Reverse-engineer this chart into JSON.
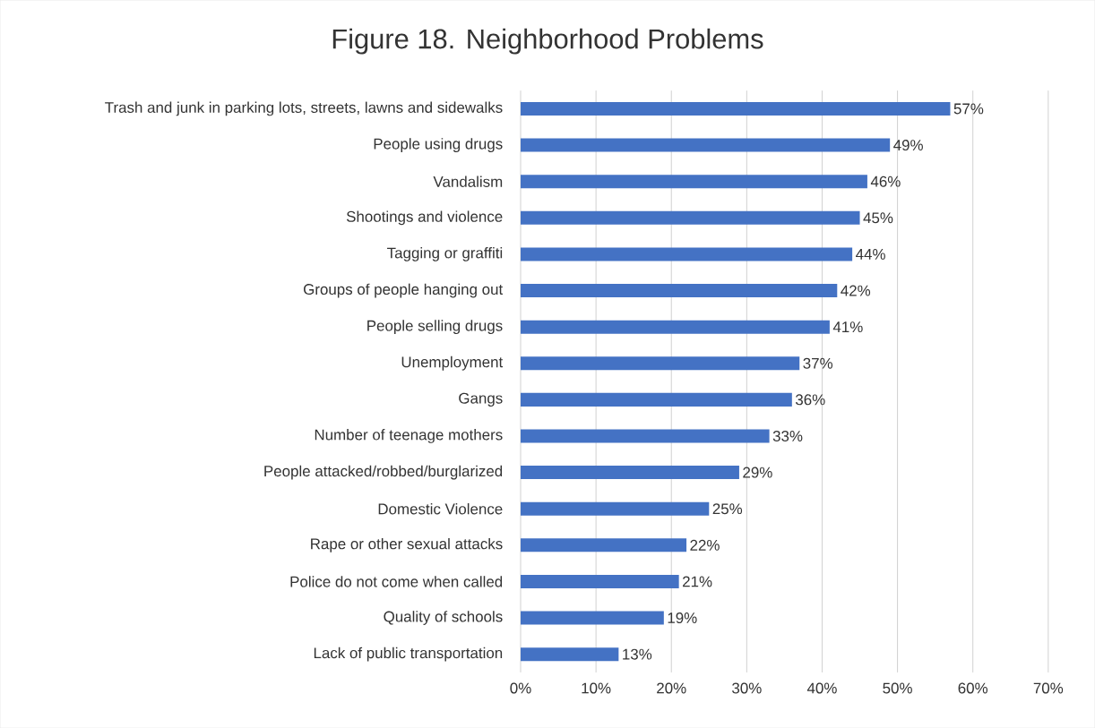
{
  "chart_data": {
    "type": "bar",
    "orientation": "horizontal",
    "title": "Figure 18. Neighborhood Problems",
    "categories": [
      "Trash and junk in parking lots, streets, lawns and sidewalks",
      "People using drugs",
      "Vandalism",
      "Shootings and violence",
      "Tagging or graffiti",
      "Groups of people hanging out",
      "People selling drugs",
      "Unemployment",
      "Gangs",
      "Number of teenage mothers",
      "People attacked/robbed/burglarized",
      "Domestic Violence",
      "Rape or other sexual attacks",
      "Police do not come when called",
      "Quality of schools",
      "Lack of public transportation"
    ],
    "values": [
      57,
      49,
      46,
      45,
      44,
      42,
      41,
      37,
      36,
      33,
      29,
      25,
      22,
      21,
      19,
      13
    ],
    "value_labels": [
      "57%",
      "49%",
      "46%",
      "45%",
      "44%",
      "42%",
      "41%",
      "37%",
      "36%",
      "33%",
      "29%",
      "25%",
      "22%",
      "21%",
      "19%",
      "13%"
    ],
    "color": "#4472c4",
    "xlim": [
      0,
      70
    ],
    "xticks": [
      {
        "value": 0,
        "label": "0%"
      },
      {
        "value": 10,
        "label": "10%"
      },
      {
        "value": 20,
        "label": "20%"
      },
      {
        "value": 30,
        "label": "30%"
      },
      {
        "value": 40,
        "label": "40%"
      },
      {
        "value": 50,
        "label": "50%"
      },
      {
        "value": 60,
        "label": "60%"
      },
      {
        "value": 70,
        "label": "70%"
      }
    ],
    "grid": "x"
  }
}
